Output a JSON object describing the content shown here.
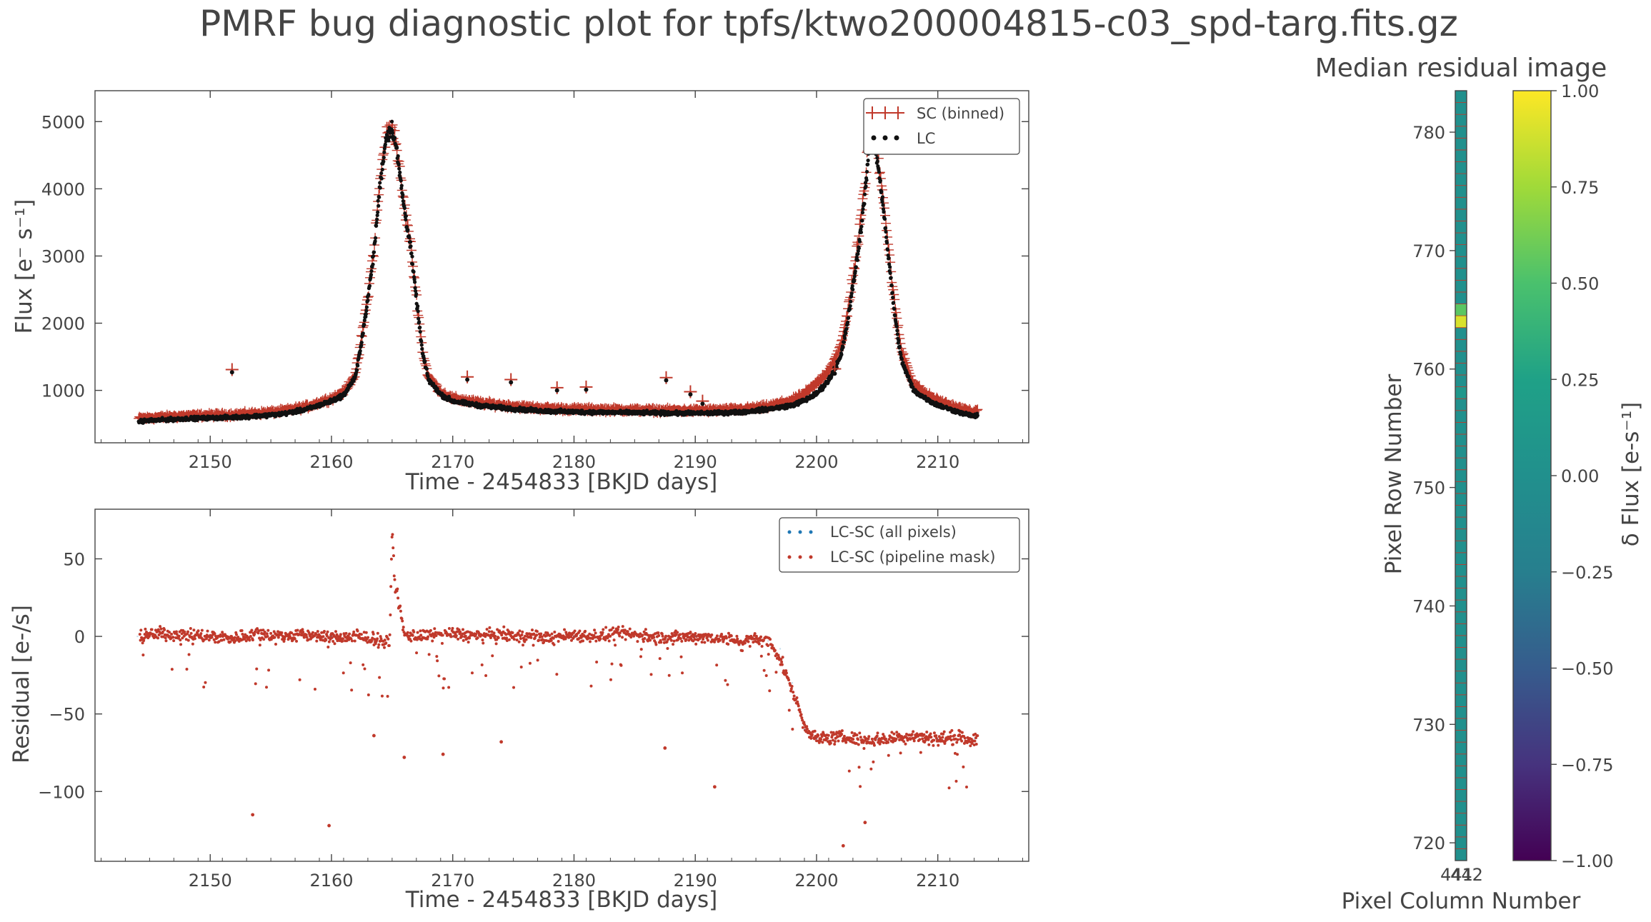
{
  "figure": {
    "title": "PMRF bug diagnostic plot for tpfs/ktwo200004815-c03_spd-targ.fits.gz"
  },
  "chart_data": [
    {
      "type": "scatter",
      "panel": "top",
      "xlabel": "Time - 2454833 [BKJD days]",
      "ylabel": "Flux [e⁻ s⁻¹]",
      "xlim": [
        2140.5,
        2217.5
      ],
      "ylim": [
        220,
        5460
      ],
      "xticks": [
        2150,
        2160,
        2170,
        2180,
        2190,
        2200,
        2210
      ],
      "yticks": [
        1000,
        2000,
        3000,
        4000,
        5000
      ],
      "legend_position": "upper right",
      "series": [
        {
          "name": "SC (binned)",
          "marker": "+",
          "color": "#c0392b",
          "x": [
            2144,
            2146,
            2148,
            2150,
            2152,
            2154,
            2156,
            2158,
            2159,
            2160,
            2161,
            2162,
            2162.5,
            2163,
            2163.5,
            2164,
            2164.5,
            2165,
            2165.3,
            2165.6,
            2166,
            2166.5,
            2167,
            2167.5,
            2168,
            2169,
            2170,
            2172,
            2174,
            2176,
            2178,
            2180,
            2182,
            2184,
            2186,
            2188,
            2190,
            2192,
            2194,
            2196,
            2198,
            2199,
            2200,
            2201,
            2202,
            2202.5,
            2203,
            2203.5,
            2204,
            2204.3,
            2204.6,
            2205,
            2205.5,
            2206,
            2206.5,
            2207,
            2208,
            2209,
            2210,
            2211,
            2212,
            2213,
            2151.8,
            2171.2,
            2174.8,
            2178.6,
            2181.0,
            2187.6,
            2189.6,
            2190.6,
            2201.5
          ],
          "y": [
            580,
            600,
            620,
            630,
            640,
            660,
            690,
            760,
            820,
            880,
            970,
            1250,
            1800,
            2400,
            3100,
            4100,
            4800,
            4950,
            4700,
            4300,
            3750,
            3200,
            2400,
            1600,
            1200,
            980,
            880,
            820,
            780,
            750,
            730,
            720,
            715,
            710,
            705,
            700,
            700,
            705,
            720,
            760,
            850,
            950,
            1100,
            1300,
            1650,
            2100,
            2700,
            3300,
            4100,
            4700,
            5000,
            4600,
            3900,
            3000,
            2200,
            1600,
            1100,
            950,
            850,
            780,
            720,
            680,
            1310,
            1200,
            1160,
            1040,
            1050,
            1190,
            980,
            840,
            1320
          ]
        },
        {
          "name": "LC",
          "marker": "o",
          "color": "#111111",
          "x": [
            2144,
            2146,
            2148,
            2150,
            2152,
            2154,
            2156,
            2158,
            2159,
            2160,
            2161,
            2162,
            2162.5,
            2163,
            2163.5,
            2164,
            2164.5,
            2165,
            2165.3,
            2165.6,
            2166,
            2166.5,
            2167,
            2167.5,
            2168,
            2169,
            2170,
            2172,
            2174,
            2176,
            2178,
            2180,
            2182,
            2184,
            2186,
            2188,
            2190,
            2192,
            2194,
            2196,
            2198,
            2199,
            2200,
            2201,
            2202,
            2202.5,
            2203,
            2203.5,
            2204,
            2204.3,
            2204.6,
            2205,
            2205.5,
            2206,
            2206.5,
            2207,
            2208,
            2209,
            2210,
            2211,
            2212,
            2213,
            2151.8,
            2171.2,
            2174.8,
            2178.6,
            2181.0,
            2187.6,
            2189.6,
            2190.6,
            2201.5
          ],
          "y": [
            540,
            560,
            580,
            590,
            600,
            620,
            650,
            720,
            780,
            840,
            930,
            1210,
            1760,
            2360,
            3060,
            4060,
            4760,
            4910,
            4660,
            4260,
            3710,
            3160,
            2360,
            1560,
            1160,
            940,
            840,
            780,
            740,
            710,
            690,
            680,
            675,
            670,
            665,
            660,
            660,
            665,
            680,
            720,
            780,
            850,
            950,
            1150,
            1500,
            1950,
            2550,
            3150,
            3950,
            4550,
            4850,
            4450,
            3750,
            2850,
            2050,
            1450,
            1000,
            880,
            780,
            720,
            660,
            620,
            1270,
            1160,
            1120,
            1000,
            1010,
            1150,
            940,
            800,
            1250
          ]
        }
      ]
    },
    {
      "type": "scatter",
      "panel": "bottom",
      "xlabel": "Time - 2454833 [BKJD days]",
      "ylabel": "Residual [e-/s]",
      "xlim": [
        2140.5,
        2217.5
      ],
      "ylim": [
        -145,
        82
      ],
      "xticks": [
        2150,
        2160,
        2170,
        2180,
        2190,
        2200,
        2210
      ],
      "yticks": [
        50,
        0,
        -50,
        -100
      ],
      "legend_position": "upper right",
      "series": [
        {
          "name": "LC-SC (all pixels)",
          "marker": "o",
          "color": "#1f77b4",
          "x": [
            2144,
            2150,
            2160,
            2170,
            2180,
            2190,
            2196,
            2197,
            2198,
            2199,
            2200,
            2205,
            2210,
            2213
          ],
          "y": [
            0,
            0,
            0,
            0,
            0,
            0,
            -3,
            -8,
            -30,
            -60,
            -66,
            -66,
            -66,
            -66
          ]
        },
        {
          "name": "LC-SC (pipeline mask)",
          "marker": "o",
          "color": "#c0392b",
          "x": [
            2144,
            2146,
            2148,
            2150,
            2152,
            2154,
            2156,
            2158,
            2160,
            2162,
            2164,
            2164.8,
            2165,
            2165.2,
            2166,
            2168,
            2170,
            2172,
            2174,
            2176,
            2178,
            2180,
            2182,
            2184,
            2186,
            2188,
            2190,
            2192,
            2194,
            2195,
            2196,
            2196.5,
            2197,
            2197.5,
            2198,
            2198.5,
            2199,
            2200,
            2202,
            2204,
            2206,
            2208,
            2210,
            2212,
            2213,
            2153.5,
            2159.8,
            2163.5,
            2166,
            2169.2,
            2174,
            2187.5,
            2191.6,
            2202.2,
            2204
          ],
          "y": [
            0,
            2,
            1,
            0,
            -1,
            2,
            0,
            1,
            -1,
            0,
            -2,
            -5,
            70,
            37,
            1,
            0,
            2,
            0,
            1,
            0,
            -1,
            1,
            0,
            2,
            0,
            -1,
            0,
            -1,
            -3,
            -2,
            -4,
            -8,
            -15,
            -25,
            -35,
            -45,
            -58,
            -66,
            -65,
            -67,
            -66,
            -64,
            -66,
            -65,
            -67,
            -115,
            -122,
            -64,
            -78,
            -76,
            -68,
            -72,
            -97,
            -135,
            -120
          ]
        }
      ]
    },
    {
      "type": "heatmap",
      "panel": "right",
      "title": "Median residual image",
      "xlabel": "Pixel Column Number",
      "ylabel": "Pixel Row Number",
      "xticks": [
        441,
        442
      ],
      "xtick_labels": [
        "441",
        "442"
      ],
      "yticks": [
        720,
        730,
        740,
        750,
        760,
        770,
        780
      ],
      "row_range": [
        719,
        784
      ],
      "colormap": "viridis",
      "colorbar_label": "δ Flux [e-s⁻¹]",
      "clim": [
        -1.0,
        1.0
      ],
      "colorbar_ticks": [
        "1.00",
        "0.75",
        "0.50",
        "0.25",
        "0.00",
        "−0.25",
        "−0.50",
        "−0.75",
        "−1.00"
      ],
      "cells": [
        {
          "row": 764,
          "value": 0.9
        },
        {
          "row": 765,
          "value": 0.55
        },
        {
          "row": 758,
          "value": 0.1
        }
      ],
      "default_value": 0.0
    }
  ]
}
